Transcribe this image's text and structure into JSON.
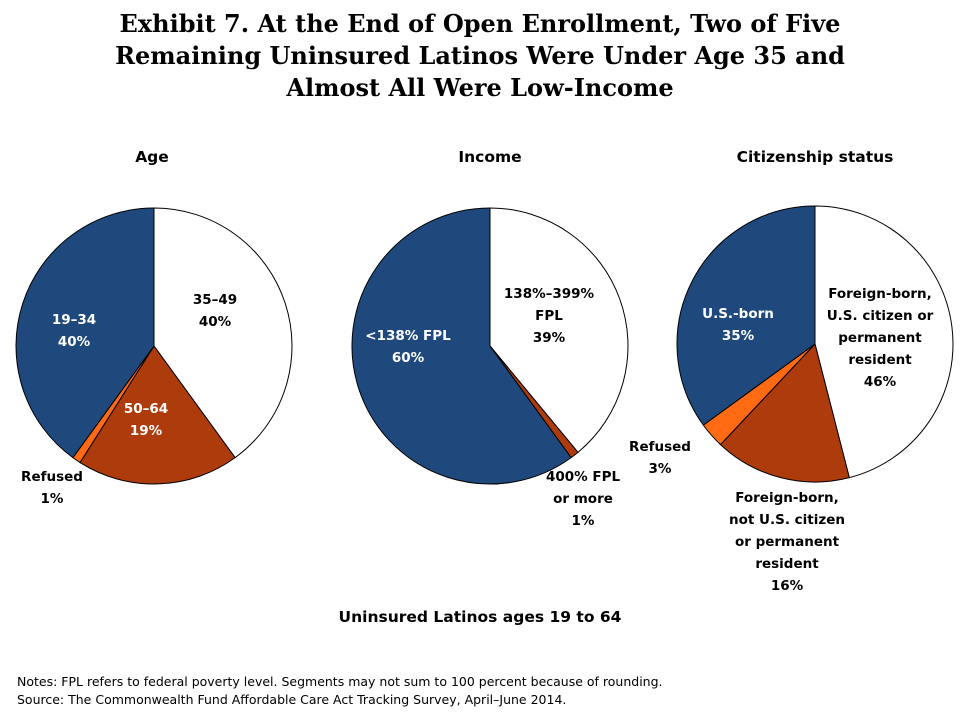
{
  "title_lines": [
    "Exhibit 7. At the End of Open Enrollment, Two of Five",
    "Remaining Uninsured Latinos Were Under Age 35 and",
    "Almost All Were Low-Income"
  ],
  "colors": {
    "navy": "#1F497D",
    "white": "#FFFFFF",
    "rust": "#AE3B0C",
    "orange": "#FF6A13",
    "outline": "#000000"
  },
  "chart_data": [
    {
      "type": "pie",
      "title": "Age",
      "slices": [
        {
          "label": "35–49",
          "value": 40,
          "value_label": "40%",
          "color": "#FFFFFF"
        },
        {
          "label": "50–64",
          "value": 19,
          "value_label": "19%",
          "color": "#AE3B0C"
        },
        {
          "label": "Refused",
          "value": 1,
          "value_label": "1%",
          "color": "#FF6A13"
        },
        {
          "label": "19–34",
          "value": 40,
          "value_label": "40%",
          "color": "#1F497D"
        }
      ]
    },
    {
      "type": "pie",
      "title": "Income",
      "slices": [
        {
          "label": "138%–399% FPL",
          "value": 39,
          "value_label": "39%",
          "color": "#FFFFFF"
        },
        {
          "label": "400% FPL or more",
          "value": 1,
          "value_label": "1%",
          "color": "#AE3B0C"
        },
        {
          "label": "<138% FPL",
          "value": 60,
          "value_label": "60%",
          "color": "#1F497D"
        }
      ]
    },
    {
      "type": "pie",
      "title": "Citizenship status",
      "slices": [
        {
          "label": "Foreign-born, U.S. citizen or permanent resident",
          "value": 46,
          "value_label": "46%",
          "color": "#FFFFFF"
        },
        {
          "label": "Foreign-born, not U.S. citizen or permanent resident",
          "value": 16,
          "value_label": "16%",
          "color": "#AE3B0C"
        },
        {
          "label": "Refused",
          "value": 3,
          "value_label": "3%",
          "color": "#FF6A13"
        },
        {
          "label": "U.S.-born",
          "value": 35,
          "value_label": "35%",
          "color": "#1F497D"
        }
      ]
    }
  ],
  "subtitle": "Uninsured Latinos ages 19 to 64",
  "notes": [
    "Notes: FPL refers to federal poverty level. Segments may not sum to 100 percent because of rounding.",
    "Source: The Commonwealth Fund Affordable Care Act Tracking Survey, April–June 2014."
  ]
}
